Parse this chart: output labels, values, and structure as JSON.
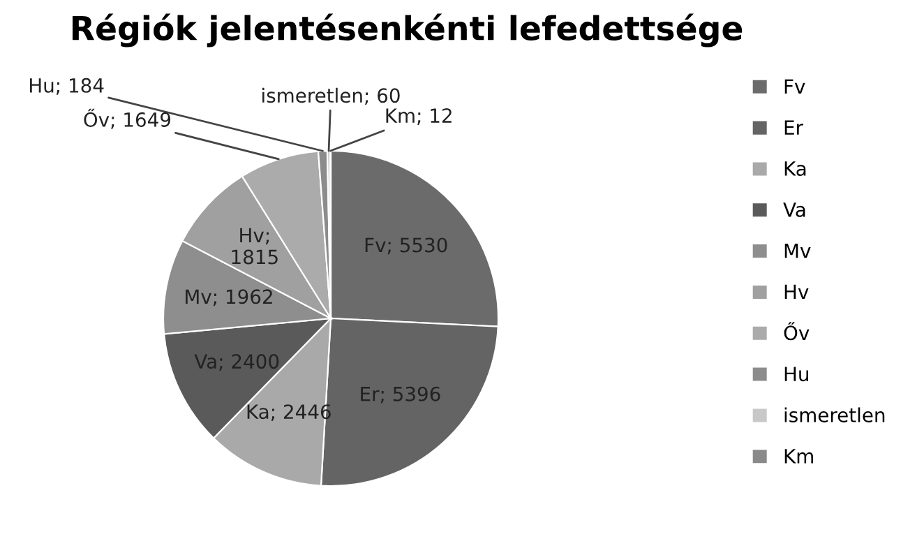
{
  "chart_data": {
    "type": "pie",
    "title": "Régiók jelentésenkénti lefedettsége",
    "categories": [
      "Fv",
      "Er",
      "Ka",
      "Va",
      "Mv",
      "Hv",
      "Őv",
      "Hu",
      "ismeretlen",
      "Km"
    ],
    "values": [
      5530,
      5396,
      2446,
      2400,
      1962,
      1815,
      1649,
      184,
      60,
      12
    ],
    "colors": [
      "#6b6b6b",
      "#646464",
      "#a9a9a9",
      "#5a5a5a",
      "#8e8e8e",
      "#a0a0a0",
      "#ababab",
      "#8c8c8c",
      "#c8c8c8",
      "#8a8a8a"
    ],
    "value_labels": [
      "Fv; 5530",
      "Er; 5396",
      "Ka; 2446",
      "Va; 2400",
      "Mv; 1962",
      "Hv;\n1815",
      "Őv; 1649",
      "Hu; 184",
      "ismeretlen; 60",
      "Km; 12"
    ],
    "legend": "right"
  }
}
